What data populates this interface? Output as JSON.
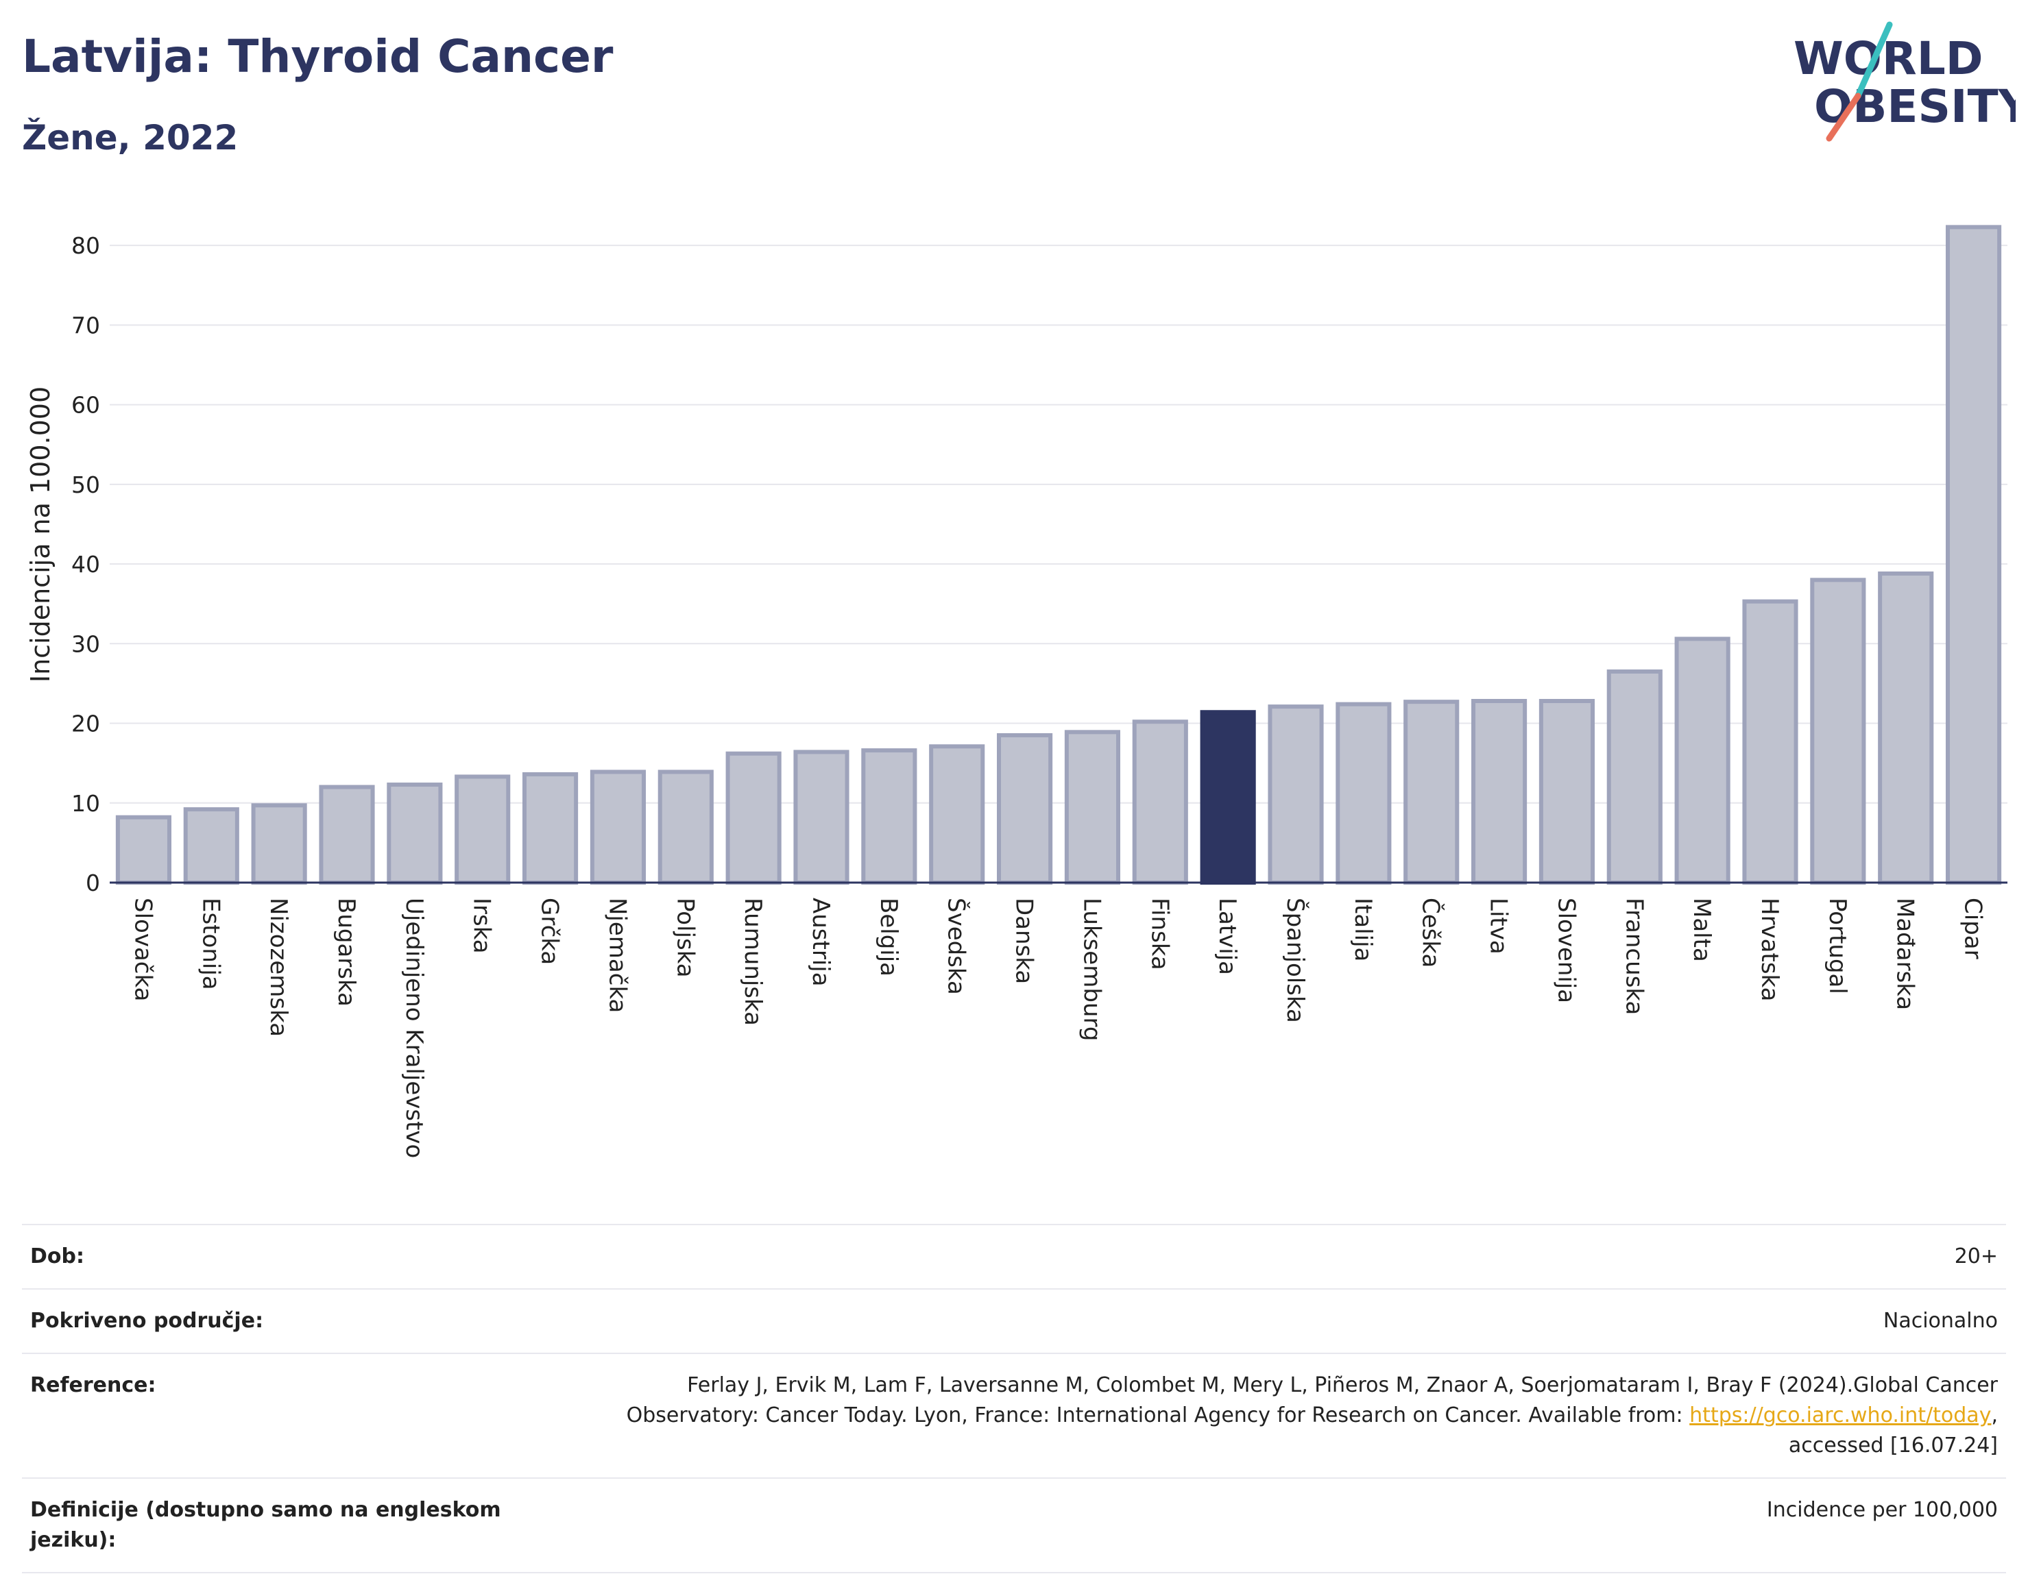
{
  "header": {
    "title": "Latvija: Thyroid Cancer",
    "subtitle": "Žene, 2022"
  },
  "logo": {
    "line1": "WORLD",
    "line2": "OBESITY",
    "colors": {
      "text": "#2d3561",
      "slash_top": "#3bbfbf",
      "slash_bottom": "#e8705a"
    }
  },
  "colors": {
    "bar_default": "#bfc2cf",
    "bar_border": "#9ea3bb",
    "bar_highlight": "#2d3561",
    "grid": "#e6e6ec"
  },
  "chart_data": {
    "type": "bar",
    "ylabel": "Incidencija na 100.000",
    "ylim": [
      0,
      85
    ],
    "yticks": [
      0,
      10,
      20,
      30,
      40,
      50,
      60,
      70,
      80
    ],
    "grid": true,
    "highlight": "Latvija",
    "categories": [
      "Slovačka",
      "Estonija",
      "Nizozemska",
      "Bugarska",
      "Ujedinjeno Kraljevstvo",
      "Irska",
      "Grčka",
      "Njemačka",
      "Poljska",
      "Rumunjska",
      "Austrija",
      "Belgija",
      "Švedska",
      "Danska",
      "Luksemburg",
      "Finska",
      "Latvija",
      "Španjolska",
      "Italija",
      "Češka",
      "Litva",
      "Slovenija",
      "Francuska",
      "Malta",
      "Hrvatska",
      "Portugal",
      "Mađarska",
      "Cipar"
    ],
    "values": [
      8.2,
      9.2,
      9.7,
      12.0,
      12.3,
      13.3,
      13.6,
      13.9,
      13.9,
      16.2,
      16.4,
      16.6,
      17.1,
      18.5,
      18.9,
      20.2,
      21.4,
      22.1,
      22.4,
      22.7,
      22.8,
      22.8,
      26.5,
      30.6,
      35.3,
      38.0,
      38.8,
      82.3
    ]
  },
  "info": {
    "rows": [
      {
        "key": "Dob:",
        "value": "20+"
      },
      {
        "key": "Pokriveno područje:",
        "value": "Nacionalno"
      },
      {
        "key": "Reference:",
        "value_pre": "Ferlay J, Ervik M, Lam F, Laversanne M, Colombet M, Mery L, Piñeros M, Znaor A, Soerjomataram I, Bray F (2024).Global Cancer Observatory: Cancer Today. Lyon, France: International Agency for Research on Cancer. Available from: ",
        "link": "https://gco.iarc.who.int/today",
        "value_post": ", accessed [16.07.24]"
      },
      {
        "key": "Definicije (dostupno samo na engleskom jeziku):",
        "value": "Incidence per 100,000"
      }
    ]
  }
}
